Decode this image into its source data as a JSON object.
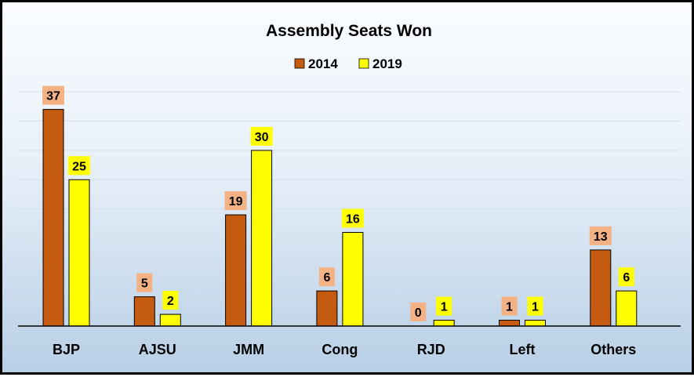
{
  "chart_data": {
    "type": "bar",
    "title": "Assembly Seats Won",
    "xlabel": "",
    "ylabel": "",
    "ylim": [
      0,
      40
    ],
    "grid": true,
    "legend_position": "top-center",
    "categories": [
      "BJP",
      "AJSU",
      "JMM",
      "Cong",
      "RJD",
      "Left",
      "Others"
    ],
    "series": [
      {
        "name": "2014",
        "color": "#c55a11",
        "label_bg": "#f4b183",
        "values": [
          37,
          5,
          19,
          6,
          0,
          1,
          13
        ]
      },
      {
        "name": "2019",
        "color": "#ffff00",
        "label_bg": "#ffff00",
        "values": [
          25,
          2,
          30,
          16,
          1,
          1,
          6
        ]
      }
    ]
  }
}
